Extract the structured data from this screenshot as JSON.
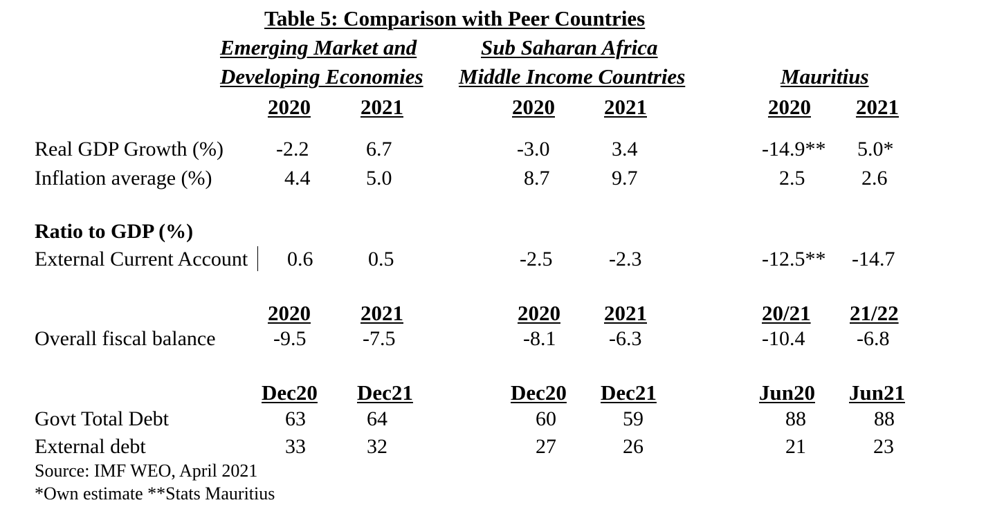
{
  "title": "Table 5: Comparison with Peer Countries",
  "groups": {
    "emde": [
      "Emerging Market and",
      "Developing Economies"
    ],
    "ssa": [
      "Sub Saharan Africa",
      "Middle Income Countries"
    ],
    "mauritius": "Mauritius"
  },
  "years_row1": [
    "2020",
    "2021",
    "2020",
    "2021",
    "2020",
    "2021"
  ],
  "rows": {
    "gdp": {
      "label": "Real GDP Growth (%)",
      "values": [
        "-2.2",
        "6.7",
        "-3.0",
        "3.4",
        "-14.9**",
        "5.0*"
      ]
    },
    "inflation": {
      "label": "Inflation average (%)",
      "values": [
        "4.4",
        "5.0",
        "8.7",
        "9.7",
        "2.5",
        "2.6"
      ]
    }
  },
  "section_ratio": "Ratio to GDP (%)",
  "current_account": {
    "label": "External Current Account",
    "values": [
      "0.6",
      "0.5",
      "-2.5",
      "-2.3",
      "-12.5**",
      "-14.7"
    ]
  },
  "years_row2": [
    "2020",
    "2021",
    "2020",
    "2021",
    "20/21",
    "21/22"
  ],
  "fiscal": {
    "label": "Overall fiscal balance",
    "values": [
      "-9.5",
      "-7.5",
      "-8.1",
      "-6.3",
      "-10.4",
      "-6.8"
    ]
  },
  "years_row3": [
    "Dec20",
    "Dec21",
    "Dec20",
    "Dec21",
    "Jun20",
    "Jun21"
  ],
  "debt": {
    "govt": {
      "label": "Govt Total Debt",
      "values": [
        "63",
        "64",
        "60",
        "59",
        "88",
        "88"
      ]
    },
    "external": {
      "label": "External debt",
      "values": [
        "33",
        "32",
        "27",
        "26",
        "21",
        "23"
      ]
    }
  },
  "source": "Source: IMF WEO, April 2021",
  "footnote": "*Own estimate **Stats Mauritius"
}
